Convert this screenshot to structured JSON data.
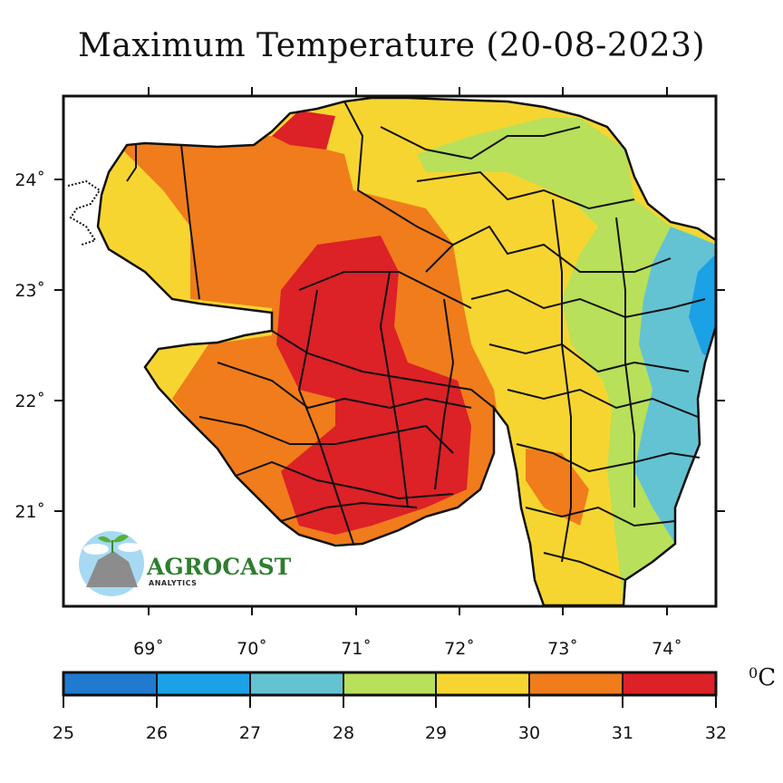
{
  "title": "Maximum Temperature (20-08-2023)",
  "map": {
    "lon_ticks": [
      "69˚",
      "70˚",
      "71˚",
      "72˚",
      "73˚",
      "74˚"
    ],
    "lon_values": [
      69,
      70,
      71,
      72,
      73,
      74
    ],
    "lat_ticks": [
      "24˚",
      "23˚",
      "22˚",
      "21˚"
    ],
    "lat_values": [
      24,
      23,
      22,
      21
    ],
    "lon_range": [
      68.2,
      74.5
    ],
    "lat_range": [
      20.15,
      24.75
    ]
  },
  "colorbar": {
    "unit": "0C",
    "unit_sup": "0",
    "unit_main": "C",
    "ticks": [
      "25",
      "26",
      "27",
      "28",
      "29",
      "30",
      "31",
      "32"
    ],
    "colors": [
      "#1f7ad0",
      "#1ba1e6",
      "#63c3d3",
      "#b8e05a",
      "#f7d531",
      "#f07c1c",
      "#dc2127"
    ]
  },
  "logo": {
    "name": "AGROCAST",
    "sub": "ANALYTICS"
  }
}
